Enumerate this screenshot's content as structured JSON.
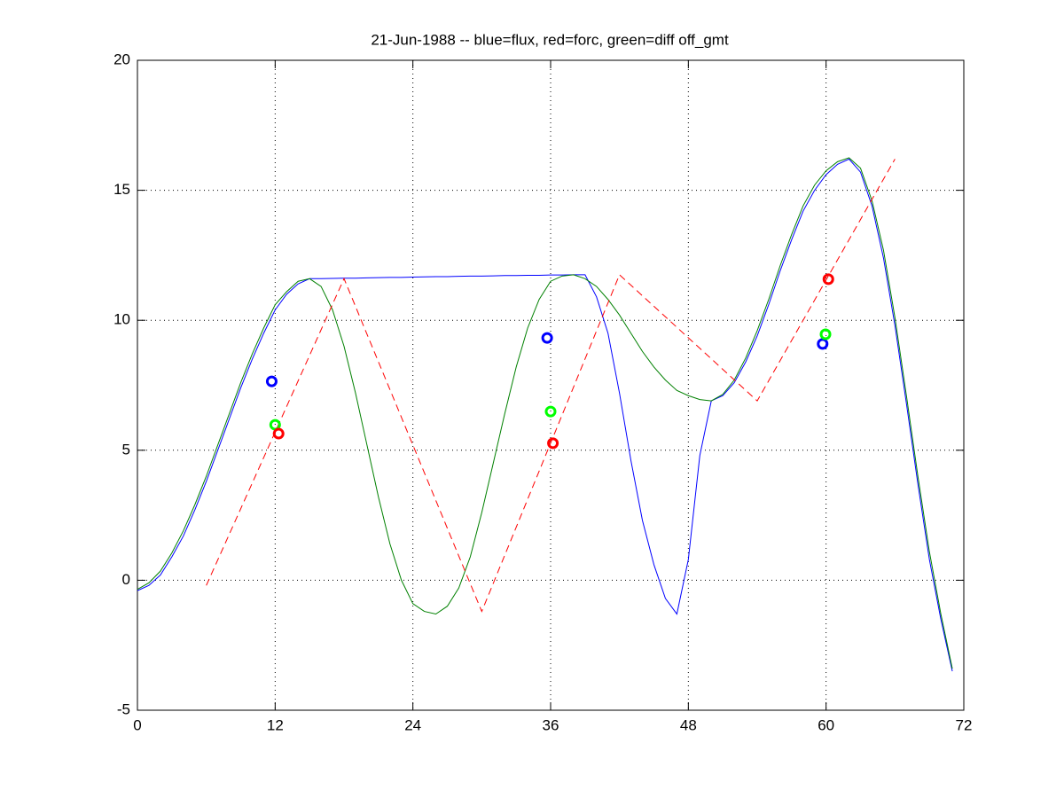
{
  "chart_data": {
    "type": "line",
    "title": "21-Jun-1988 -- blue=flux, red=forc, green=diff off_gmt",
    "xlim": [
      0,
      72
    ],
    "xticks": [
      0,
      12,
      24,
      36,
      48,
      60,
      72
    ],
    "ylim": [
      -5,
      20
    ],
    "yticks": [
      -5,
      0,
      5,
      10,
      15,
      20
    ],
    "grid": true,
    "series": [
      {
        "color": "#0000ff",
        "style": "solid",
        "x": [
          0,
          1,
          2,
          3,
          4,
          5,
          6,
          7,
          8,
          9,
          10,
          11,
          12,
          13,
          14,
          15,
          16,
          17,
          18,
          19,
          20,
          21,
          22,
          23,
          24,
          25,
          26,
          27,
          28,
          29,
          30,
          31,
          32,
          33,
          34,
          35,
          36,
          37,
          38,
          39,
          40,
          41,
          42,
          43,
          44,
          45,
          46,
          47,
          48,
          49,
          50,
          51,
          52,
          53,
          54,
          55,
          56,
          57,
          58,
          59,
          60,
          61,
          62,
          63,
          64,
          65,
          66,
          67,
          68,
          69,
          70,
          71
        ],
        "values": [
          -0.4,
          -0.2,
          0.2,
          0.9,
          1.7,
          2.7,
          3.8,
          5.0,
          6.2,
          7.4,
          8.5,
          9.5,
          10.4,
          11.0,
          11.4,
          11.6,
          11.6,
          11.61,
          11.62,
          11.62,
          11.63,
          11.64,
          11.65,
          11.65,
          11.66,
          11.67,
          11.68,
          11.68,
          11.69,
          11.7,
          11.7,
          11.71,
          11.72,
          11.72,
          11.73,
          11.73,
          11.74,
          11.74,
          11.75,
          11.75,
          10.9,
          9.5,
          7.2,
          4.6,
          2.3,
          0.6,
          -0.7,
          -1.3,
          0.8,
          4.8,
          6.9,
          7.1,
          7.6,
          8.4,
          9.4,
          10.6,
          11.9,
          13.1,
          14.2,
          15.0,
          15.6,
          16.0,
          16.2,
          15.7,
          14.4,
          12.4,
          9.8,
          6.8,
          3.7,
          0.8,
          -1.5,
          -3.5
        ]
      },
      {
        "color": "#008000",
        "style": "solid",
        "x": [
          0,
          1,
          2,
          3,
          4,
          5,
          6,
          7,
          8,
          9,
          10,
          11,
          12,
          13,
          14,
          15,
          16,
          17,
          18,
          19,
          20,
          21,
          22,
          23,
          24,
          25,
          26,
          27,
          28,
          29,
          30,
          31,
          32,
          33,
          34,
          35,
          36,
          37,
          38,
          39,
          40,
          41,
          42,
          43,
          44,
          45,
          46,
          47,
          48,
          49,
          50,
          51,
          52,
          53,
          54,
          55,
          56,
          57,
          58,
          59,
          60,
          61,
          62,
          63,
          64,
          65,
          66,
          67,
          68,
          69,
          70,
          71
        ],
        "values": [
          -0.35,
          -0.1,
          0.35,
          1.05,
          1.9,
          2.9,
          4.0,
          5.2,
          6.4,
          7.6,
          8.7,
          9.7,
          10.6,
          11.1,
          11.5,
          11.6,
          11.3,
          10.4,
          9.0,
          7.2,
          5.2,
          3.2,
          1.4,
          0.0,
          -0.9,
          -1.2,
          -1.3,
          -1.0,
          -0.3,
          0.9,
          2.6,
          4.5,
          6.4,
          8.2,
          9.7,
          10.8,
          11.5,
          11.7,
          11.75,
          11.6,
          11.3,
          10.8,
          10.2,
          9.5,
          8.8,
          8.2,
          7.7,
          7.3,
          7.1,
          6.95,
          6.9,
          7.15,
          7.7,
          8.55,
          9.6,
          10.8,
          12.1,
          13.3,
          14.4,
          15.2,
          15.75,
          16.1,
          16.25,
          15.85,
          14.6,
          12.7,
          10.1,
          7.1,
          4.0,
          1.1,
          -1.3,
          -3.4
        ]
      },
      {
        "color": "#ff0000",
        "style": "dashed",
        "x": [
          6,
          18,
          30,
          42,
          54,
          66
        ],
        "values": [
          -0.2,
          11.6,
          -1.2,
          11.75,
          6.9,
          16.2
        ]
      },
      {
        "color": "#0000ff",
        "style": "markers",
        "x": [
          11.7,
          35.7,
          59.7
        ],
        "values": [
          7.65,
          9.32,
          9.09
        ]
      },
      {
        "color": "#00ff00",
        "style": "markers",
        "x": [
          12.0,
          36.0,
          59.95
        ],
        "values": [
          5.98,
          6.49,
          9.46
        ]
      },
      {
        "color": "#ff0000",
        "style": "markers",
        "x": [
          12.3,
          36.2,
          60.2
        ],
        "values": [
          5.64,
          5.27,
          11.58
        ]
      }
    ]
  }
}
